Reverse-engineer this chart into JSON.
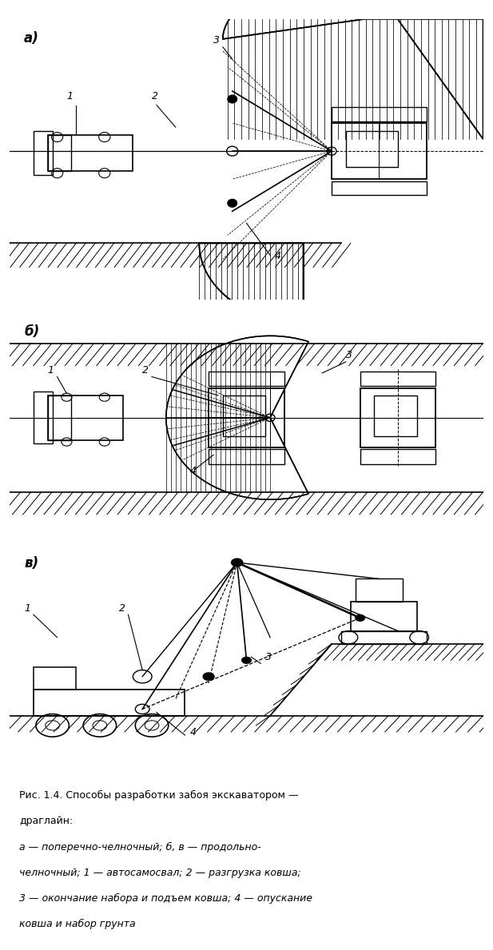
{
  "bg_color": "#ffffff",
  "line_color": "#000000",
  "label_a": "а)",
  "label_b": "б)",
  "label_v": "в)",
  "caption_lines": [
    "Рис. 1.4. Способы разработки забоя экскаватором —",
    "драглайн:",
    "а — поперечно-челночный; б, в — продольно-",
    "челночный; 1 — автосамосвал; 2 — разгрузка ковша;",
    "3 — окончание набора и подъем ковша; 4 — опускание",
    "ковша и набор грунта"
  ]
}
